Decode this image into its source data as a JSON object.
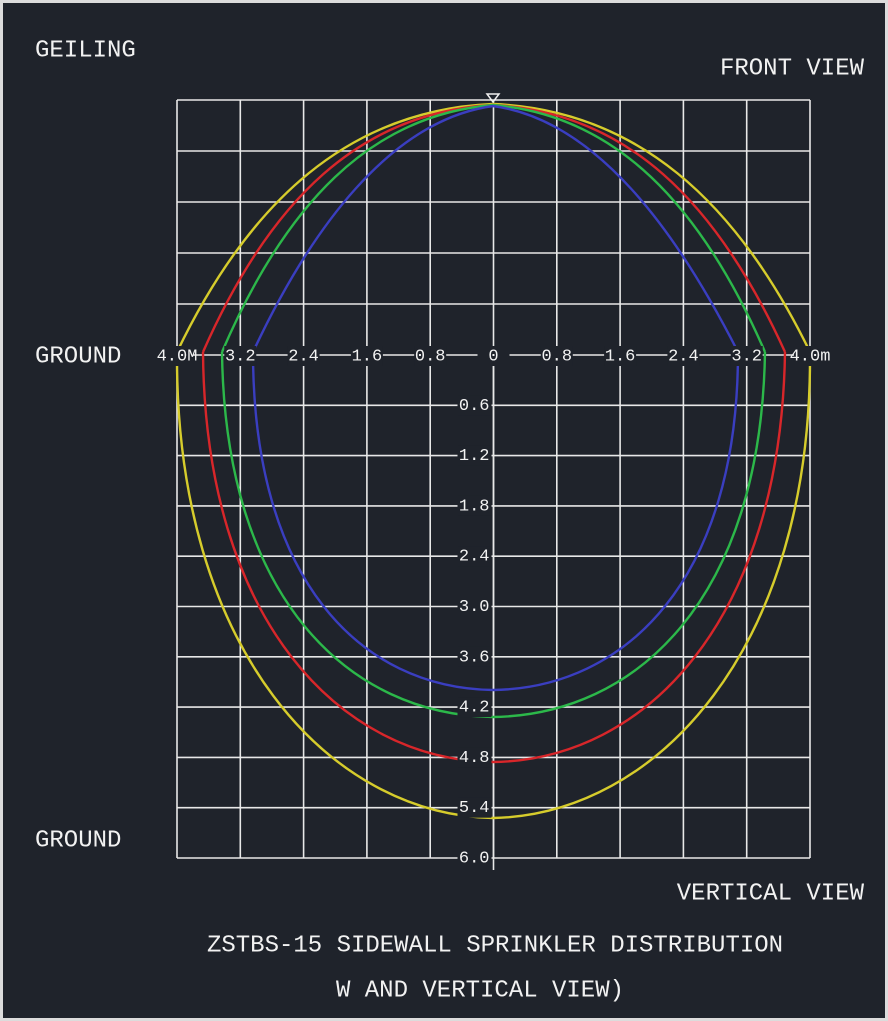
{
  "labels": {
    "ceiling": "GEILING",
    "front_view": "FRONT VIEW",
    "ground_top": "GROUND",
    "ground_bottom": "GROUND",
    "vertical_view": "VERTICAL VIEW"
  },
  "horizontal_scale": [
    "4.0M",
    "3.2",
    "2.4",
    "1.6",
    "0.8",
    "0",
    "0.8",
    "1.6",
    "2.4",
    "3.2",
    "4.0m"
  ],
  "vertical_scale": [
    "0.6",
    "1.2",
    "1.8",
    "2.4",
    "3.0",
    "3.6",
    "4.2",
    "4.8",
    "5.4",
    "6.0"
  ],
  "caption": [
    "ZSTBS-15 SIDEWALL SPRINKLER DISTRIBUTION",
    "W AND VERTICAL VIEW)"
  ]
}
